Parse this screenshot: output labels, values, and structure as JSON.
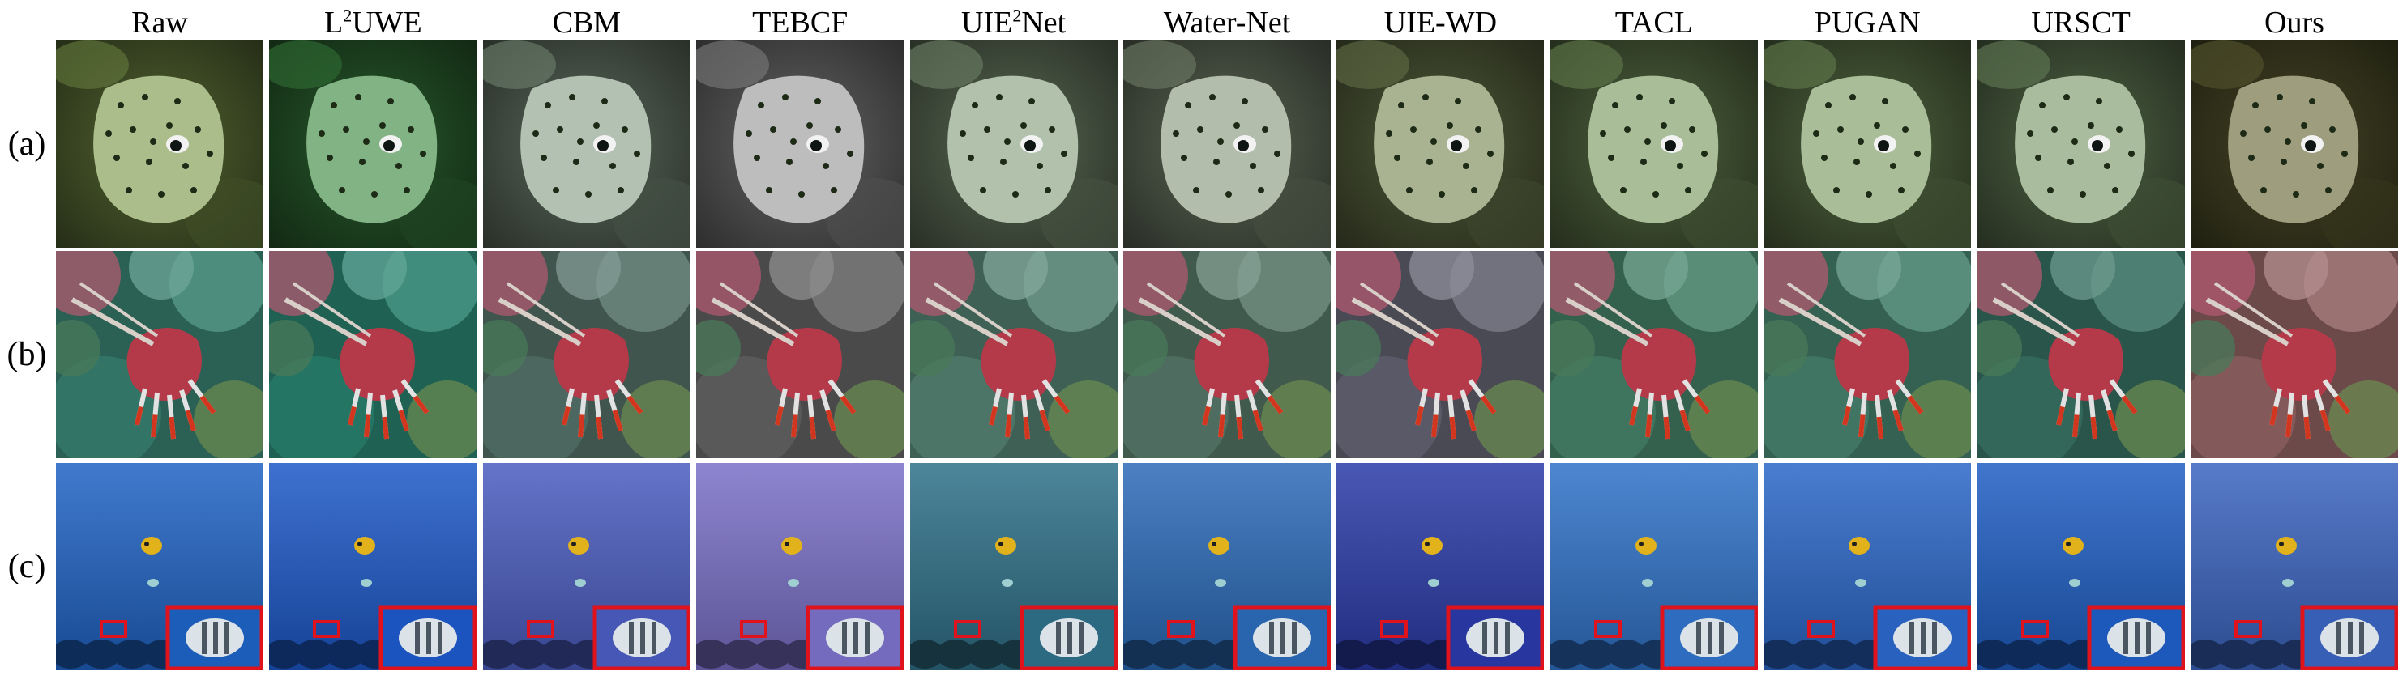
{
  "figure": {
    "methods": [
      {
        "id": "raw",
        "pre": "Raw",
        "sup": "",
        "post": ""
      },
      {
        "id": "l2uwe",
        "pre": "L",
        "sup": "2",
        "post": "UWE"
      },
      {
        "id": "cbm",
        "pre": "CBM",
        "sup": "",
        "post": ""
      },
      {
        "id": "tebcf",
        "pre": "TEBCF",
        "sup": "",
        "post": ""
      },
      {
        "id": "uie2net",
        "pre": "UIE",
        "sup": "2",
        "post": "Net"
      },
      {
        "id": "water-net",
        "pre": "Water-Net",
        "sup": "",
        "post": ""
      },
      {
        "id": "uie-wd",
        "pre": "UIE-WD",
        "sup": "",
        "post": ""
      },
      {
        "id": "tacl",
        "pre": "TACL",
        "sup": "",
        "post": ""
      },
      {
        "id": "pugan",
        "pre": "PUGAN",
        "sup": "",
        "post": ""
      },
      {
        "id": "ursct",
        "pre": "URSCT",
        "sup": "",
        "post": ""
      },
      {
        "id": "ours",
        "pre": "Ours",
        "sup": "",
        "post": ""
      }
    ],
    "rows": [
      {
        "label": "(a)",
        "scene": "boxfish"
      },
      {
        "label": "(b)",
        "scene": "hermit-crab"
      },
      {
        "label": "(c)",
        "scene": "butterflyfish"
      }
    ],
    "colors": {
      "zoom_box_border": "#e0121b",
      "tints": {
        "raw": {
          "a": "#7e9a4c",
          "b": "#3c8a78",
          "c": "#1f62c4"
        },
        "l2uwe": {
          "a": "#3d8a44",
          "b": "#2c8a76",
          "c": "#1c58c8"
        },
        "cbm": {
          "a": "#8aa08a",
          "b": "#5a7a70",
          "c": "#4a5cc0"
        },
        "tebcf": {
          "a": "#9a9a9a",
          "b": "#6a6a6a",
          "c": "#7a70c8"
        },
        "uie2net": {
          "a": "#88a080",
          "b": "#5a8a7a",
          "c": "#2e7088"
        },
        "water-net": {
          "a": "#8a9a80",
          "b": "#5c8070",
          "c": "#2b6ab8"
        },
        "uie-wd": {
          "a": "#7a8a58",
          "b": "#6a6a7a",
          "c": "#2a3aa8"
        },
        "tacl": {
          "a": "#7a9a60",
          "b": "#4a8a70",
          "c": "#2f72c8"
        },
        "pugan": {
          "a": "#7a9a60",
          "b": "#4a8a74",
          "c": "#2a66c8"
        },
        "ursct": {
          "a": "#7a9a6a",
          "b": "#3c7a6a",
          "c": "#1f5ec4"
        },
        "ours": {
          "a": "#6a6a3a",
          "b": "#9a6a6a",
          "c": "#3a64c0"
        }
      }
    }
  }
}
